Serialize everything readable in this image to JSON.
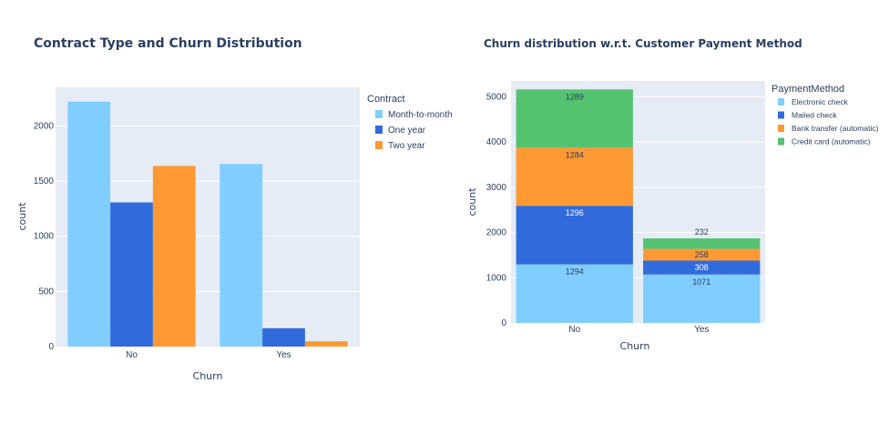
{
  "chart_data": [
    {
      "type": "bar",
      "barmode": "group",
      "title": "Contract Type and Churn Distribution",
      "xlabel": "Churn",
      "ylabel": "count",
      "categories": [
        "No",
        "Yes"
      ],
      "ylim": [
        0,
        2350
      ],
      "yticks": [
        0,
        500,
        1000,
        1500,
        2000
      ],
      "grid": true,
      "legend_title": "Contract",
      "legend_position": "right",
      "series": [
        {
          "name": "Month-to-month",
          "values": [
            2220,
            1655
          ],
          "color": "#80CEFF"
        },
        {
          "name": "One year",
          "values": [
            1307,
            166
          ],
          "color": "#316BDB"
        },
        {
          "name": "Two year",
          "values": [
            1637,
            48
          ],
          "color": "#FF9933"
        }
      ]
    },
    {
      "type": "bar",
      "barmode": "stack",
      "title": "Churn distribution w.r.t. Customer Payment Method",
      "xlabel": "Churn",
      "ylabel": "count",
      "categories": [
        "No",
        "Yes"
      ],
      "ylim": [
        0,
        5350
      ],
      "yticks": [
        0,
        1000,
        2000,
        3000,
        4000,
        5000
      ],
      "grid": true,
      "legend_title": "PaymentMethod",
      "legend_position": "right",
      "series": [
        {
          "name": "Electronic check",
          "values": [
            1294,
            1071
          ],
          "labels": [
            "1294",
            "1071"
          ],
          "color": "#80CEFF"
        },
        {
          "name": "Mailed check",
          "values": [
            1296,
            308
          ],
          "labels": [
            "1296",
            "308"
          ],
          "color": "#316BDB"
        },
        {
          "name": "Bank transfer (automatic)",
          "values": [
            1284,
            258
          ],
          "labels": [
            "1284",
            "258"
          ],
          "color": "#FF9933"
        },
        {
          "name": "Credit card (automatic)",
          "values": [
            1289,
            232
          ],
          "labels": [
            "1289",
            "232"
          ],
          "color": "#55C270"
        }
      ]
    }
  ]
}
